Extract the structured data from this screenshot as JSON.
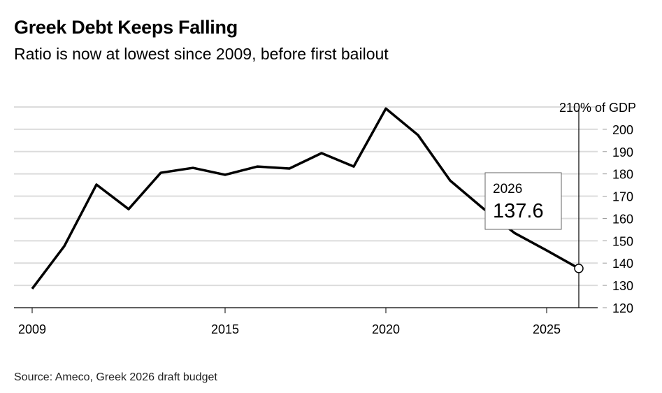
{
  "header": {
    "title": "Greek Debt Keeps Falling",
    "subtitle": "Ratio is now at lowest since 2009, before first bailout"
  },
  "footer": {
    "source": "Source: Ameco, Greek 2026 draft budget"
  },
  "chart_data": {
    "type": "line",
    "title": "Greek Debt Keeps Falling",
    "subtitle": "Ratio is now at lowest since 2009, before first bailout",
    "unit_label": "210% of GDP",
    "x": [
      2009,
      2010,
      2011,
      2012,
      2013,
      2014,
      2015,
      2016,
      2017,
      2018,
      2019,
      2020,
      2021,
      2022,
      2023,
      2024,
      2025,
      2026
    ],
    "series": [
      {
        "values": [
          128.5,
          147.6,
          175.2,
          164.2,
          180.5,
          182.7,
          179.6,
          183.3,
          182.4,
          189.3,
          183.3,
          209.3,
          197.4,
          177.0,
          164.8,
          153.5,
          145.7,
          137.6
        ],
        "color": "#000000"
      }
    ],
    "xlim": [
      2009,
      2027.2
    ],
    "ylim": [
      120,
      210
    ],
    "x_ticks": [
      "2009",
      "2015",
      "2020",
      "2025"
    ],
    "y_ticks": [
      "120",
      "130",
      "140",
      "150",
      "160",
      "170",
      "180",
      "190",
      "200"
    ],
    "y_axis_side": "right",
    "grid": true,
    "annotation": {
      "label": "2026",
      "value": "137.6"
    }
  }
}
